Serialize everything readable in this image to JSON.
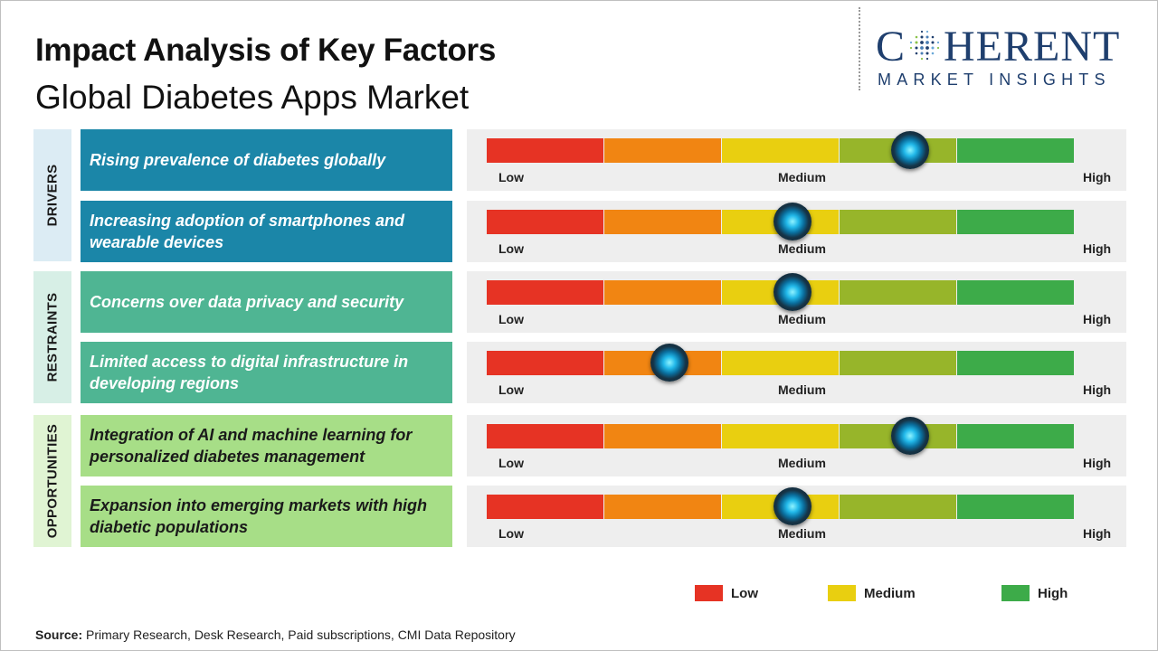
{
  "title": "Impact Analysis of Key Factors",
  "subtitle": "Global Diabetes Apps Market",
  "logo": {
    "main_left": "C",
    "main_right": "HERENT",
    "sub": "MARKET INSIGHTS"
  },
  "colors": {
    "drivers_bg": "#dcecf4",
    "drivers_box": "#1b86a8",
    "restraints_bg": "#d7efe6",
    "restraints_box": "#4fb593",
    "opportunities_bg": "#e0f4d3",
    "opportunities_box": "#a7de87",
    "seg_red": "#e63324",
    "seg_orange": "#f18512",
    "seg_yellow": "#e9cf10",
    "seg_olive": "#97b52a",
    "seg_green": "#3dab49"
  },
  "chart_data": {
    "type": "gauge",
    "scale": [
      "Low",
      "Medium",
      "High"
    ],
    "segments": 5,
    "categories": [
      {
        "name": "DRIVERS",
        "factors": [
          {
            "label": "Rising prevalence of diabetes globally",
            "impact": 0.72,
            "low": "Low",
            "medium": "Medium",
            "high": "High"
          },
          {
            "label": "Increasing adoption of smartphones and wearable devices",
            "impact": 0.52,
            "low": "Low",
            "medium": "Medium",
            "high": "High"
          }
        ]
      },
      {
        "name": "RESTRAINTS",
        "factors": [
          {
            "label": "Concerns over data privacy and security",
            "impact": 0.52,
            "low": "Low",
            "medium": "Medium",
            "high": "High"
          },
          {
            "label": "Limited access to digital infrastructure in developing regions",
            "impact": 0.31,
            "low": "Low",
            "medium": "Medium",
            "high": "High"
          }
        ]
      },
      {
        "name": "OPPORTUNITIES",
        "factors": [
          {
            "label": "Integration of AI and machine learning for personalized diabetes management",
            "impact": 0.72,
            "low": "Low",
            "medium": "Medium",
            "high": "High"
          },
          {
            "label": "Expansion into emerging markets with high diabetic populations",
            "impact": 0.52,
            "low": "Low",
            "medium": "Medium",
            "high": "High"
          }
        ]
      }
    ],
    "legend": [
      {
        "label": "Low",
        "color": "#e63324"
      },
      {
        "label": "Medium",
        "color": "#e9cf10"
      },
      {
        "label": "High",
        "color": "#3dab49"
      }
    ]
  },
  "source": {
    "label": "Source:",
    "text": " Primary Research, Desk Research, Paid subscriptions, CMI Data Repository"
  }
}
